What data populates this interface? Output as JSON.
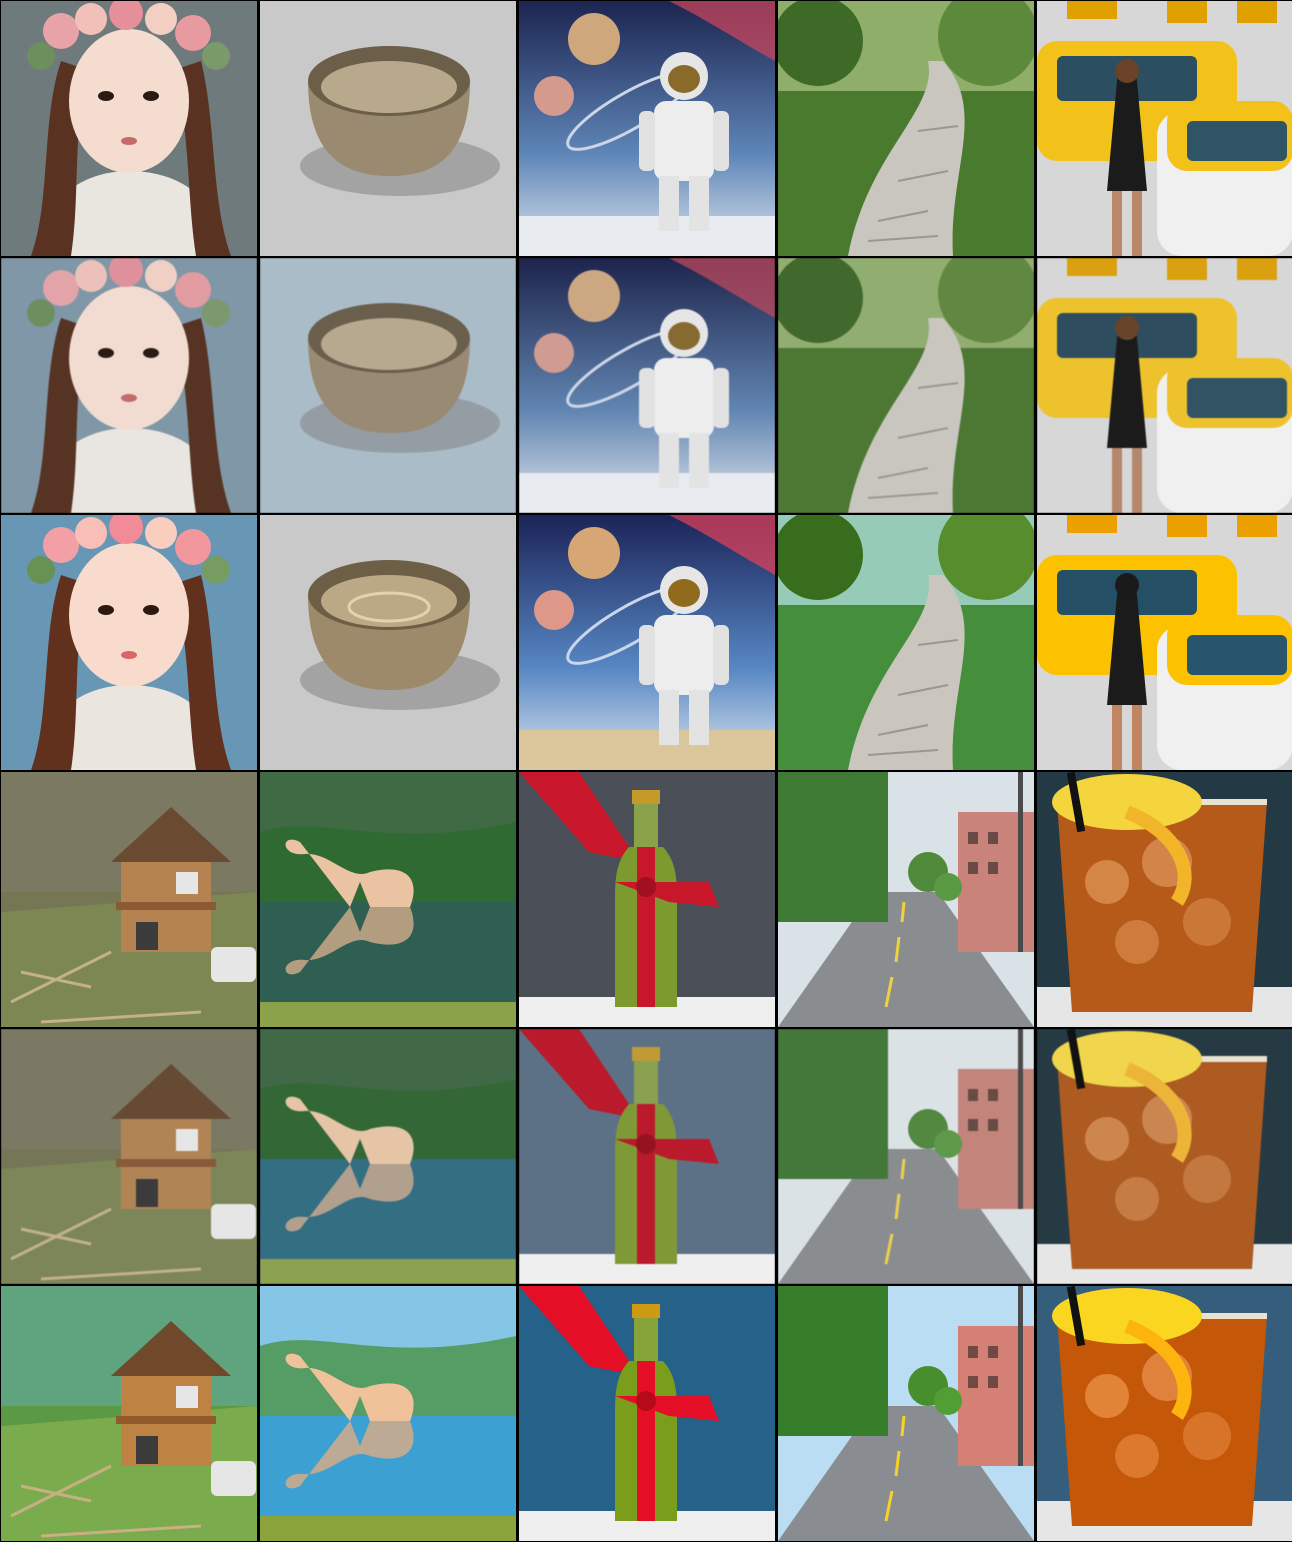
{
  "grid": {
    "columns": 5,
    "rows": 6,
    "row_groups": [
      {
        "rows": [
          0,
          1,
          2
        ],
        "subjects": [
          "girl-flower-crown-portrait",
          "ceramic-bowl",
          "astronaut-in-space",
          "stone-forest-path",
          "yellow-taxis-street"
        ]
      },
      {
        "rows": [
          3,
          4,
          5
        ],
        "subjects": [
          "damaged-wooden-house",
          "dinosaur-lake-reflection",
          "wine-bottle-red-ribbon",
          "tree-lined-street",
          "iced-tea-lemon"
        ]
      }
    ],
    "row_styles": [
      "photo-original",
      "photo-soft",
      "stylized-illustration",
      "photo-original",
      "photo-soft",
      "stylized-illustration"
    ]
  },
  "colors": {
    "sky_blue": "#8fb8d8",
    "taxi_yellow": "#f2c21b",
    "ribbon_red": "#c8162a",
    "foliage_green": "#3f7a35",
    "tea_amber": "#b55a18",
    "bowl_bronze": "#9a8a70"
  }
}
